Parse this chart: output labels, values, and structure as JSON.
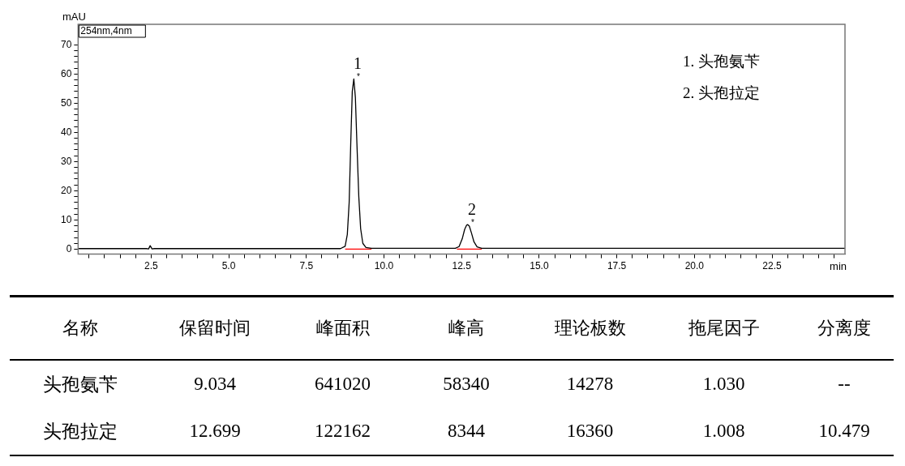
{
  "chart_data": [
    {
      "type": "line",
      "xlabel": "min",
      "ylabel": "mAU",
      "xlim": [
        0.15,
        24.85
      ],
      "ylim": [
        -1.7,
        77
      ],
      "xticks": [
        {
          "value": 0.5,
          "label": null
        },
        {
          "value": 1,
          "label": null
        },
        {
          "value": 1.5,
          "label": null
        },
        {
          "value": 2,
          "label": null
        },
        {
          "value": 2.5,
          "label": "2.5"
        },
        {
          "value": 3,
          "label": null
        },
        {
          "value": 3.5,
          "label": null
        },
        {
          "value": 4,
          "label": null
        },
        {
          "value": 4.5,
          "label": null
        },
        {
          "value": 5,
          "label": "5.0"
        },
        {
          "value": 5.5,
          "label": null
        },
        {
          "value": 6,
          "label": null
        },
        {
          "value": 6.5,
          "label": null
        },
        {
          "value": 7,
          "label": null
        },
        {
          "value": 7.5,
          "label": "7.5"
        },
        {
          "value": 8,
          "label": null
        },
        {
          "value": 8.5,
          "label": null
        },
        {
          "value": 9,
          "label": null
        },
        {
          "value": 9.5,
          "label": null
        },
        {
          "value": 10,
          "label": "10.0"
        },
        {
          "value": 10.5,
          "label": null
        },
        {
          "value": 11,
          "label": null
        },
        {
          "value": 11.5,
          "label": null
        },
        {
          "value": 12,
          "label": null
        },
        {
          "value": 12.5,
          "label": "12.5"
        },
        {
          "value": 13,
          "label": null
        },
        {
          "value": 13.5,
          "label": null
        },
        {
          "value": 14,
          "label": null
        },
        {
          "value": 14.5,
          "label": null
        },
        {
          "value": 15,
          "label": "15.0"
        },
        {
          "value": 15.5,
          "label": null
        },
        {
          "value": 16,
          "label": null
        },
        {
          "value": 16.5,
          "label": null
        },
        {
          "value": 17,
          "label": null
        },
        {
          "value": 17.5,
          "label": "17.5"
        },
        {
          "value": 18,
          "label": null
        },
        {
          "value": 18.5,
          "label": null
        },
        {
          "value": 19,
          "label": null
        },
        {
          "value": 19.5,
          "label": null
        },
        {
          "value": 20,
          "label": "20.0"
        },
        {
          "value": 20.5,
          "label": null
        },
        {
          "value": 21,
          "label": null
        },
        {
          "value": 21.5,
          "label": null
        },
        {
          "value": 22,
          "label": null
        },
        {
          "value": 22.5,
          "label": "22.5"
        },
        {
          "value": 23,
          "label": null
        },
        {
          "value": 23.5,
          "label": null
        },
        {
          "value": 24,
          "label": null
        },
        {
          "value": 24.5,
          "label": null
        }
      ],
      "yticks": [
        0,
        {
          "value": 2,
          "label": null
        },
        {
          "value": 4,
          "label": null
        },
        {
          "value": 6,
          "label": null
        },
        {
          "value": 8,
          "label": null
        },
        10,
        {
          "value": 12,
          "label": null
        },
        {
          "value": 14,
          "label": null
        },
        {
          "value": 16,
          "label": null
        },
        {
          "value": 18,
          "label": null
        },
        20,
        {
          "value": 22,
          "label": null
        },
        {
          "value": 24,
          "label": null
        },
        {
          "value": 26,
          "label": null
        },
        {
          "value": 28,
          "label": null
        },
        30,
        {
          "value": 32,
          "label": null
        },
        {
          "value": 34,
          "label": null
        },
        {
          "value": 36,
          "label": null
        },
        {
          "value": 38,
          "label": null
        },
        40,
        {
          "value": 42,
          "label": null
        },
        {
          "value": 44,
          "label": null
        },
        {
          "value": 46,
          "label": null
        },
        {
          "value": 48,
          "label": null
        },
        50,
        {
          "value": 52,
          "label": null
        },
        {
          "value": 54,
          "label": null
        },
        {
          "value": 56,
          "label": null
        },
        {
          "value": 58,
          "label": null
        },
        60,
        {
          "value": 62,
          "label": null
        },
        {
          "value": 64,
          "label": null
        },
        {
          "value": 66,
          "label": null
        },
        {
          "value": 68,
          "label": null
        },
        70
      ],
      "grid": false,
      "legend": false,
      "marker": "none",
      "line_style": "solid",
      "series": [
        {
          "color": "#000000",
          "x": [
            0.15,
            2.35,
            2.42,
            2.47,
            2.53,
            2.6,
            8.6,
            8.75,
            8.82,
            8.88,
            8.93,
            8.98,
            9.03,
            9.08,
            9.13,
            9.19,
            9.25,
            9.32,
            9.42,
            9.6,
            12.3,
            12.42,
            12.52,
            12.6,
            12.66,
            12.7,
            12.75,
            12.82,
            12.9,
            13.0,
            13.15,
            24.85
          ],
          "values": [
            0.2,
            0.2,
            0.1,
            1.2,
            0.1,
            0.2,
            0.2,
            1.0,
            5,
            16,
            36,
            54,
            58.3,
            52,
            36,
            18,
            7,
            2,
            0.6,
            0.3,
            0.3,
            0.9,
            3.5,
            6.8,
            8.2,
            8.4,
            7.9,
            5.5,
            2.5,
            0.8,
            0.3,
            0.3
          ]
        },
        {
          "color": "#ff0000",
          "x": [
            8.75,
            9.6,
            9.61,
            12.35,
            13.15
          ],
          "values": [
            0,
            0,
            null,
            0,
            0
          ]
        }
      ],
      "annotations": [
        "254nm,4nm",
        "1. 头孢氨苄",
        "2. 头孢拉定",
        {
          "text": "1",
          "x": 9.03,
          "y": 58.3
        },
        "*",
        {
          "text": "2",
          "x": 12.7,
          "y": 8.4
        },
        "*"
      ]
    },
    {
      "type": "other",
      "annotations": [
        "名称",
        "保留时间",
        "峰面积",
        "峰高",
        "理论板数",
        "拖尾因子",
        "分离度",
        "头孢氨苄",
        "9.034",
        "641020",
        "58340",
        "14278",
        "1.030",
        "--",
        "头孢拉定",
        "12.699",
        "122162",
        "8344",
        "16360",
        "1.008",
        "10.479"
      ]
    }
  ]
}
